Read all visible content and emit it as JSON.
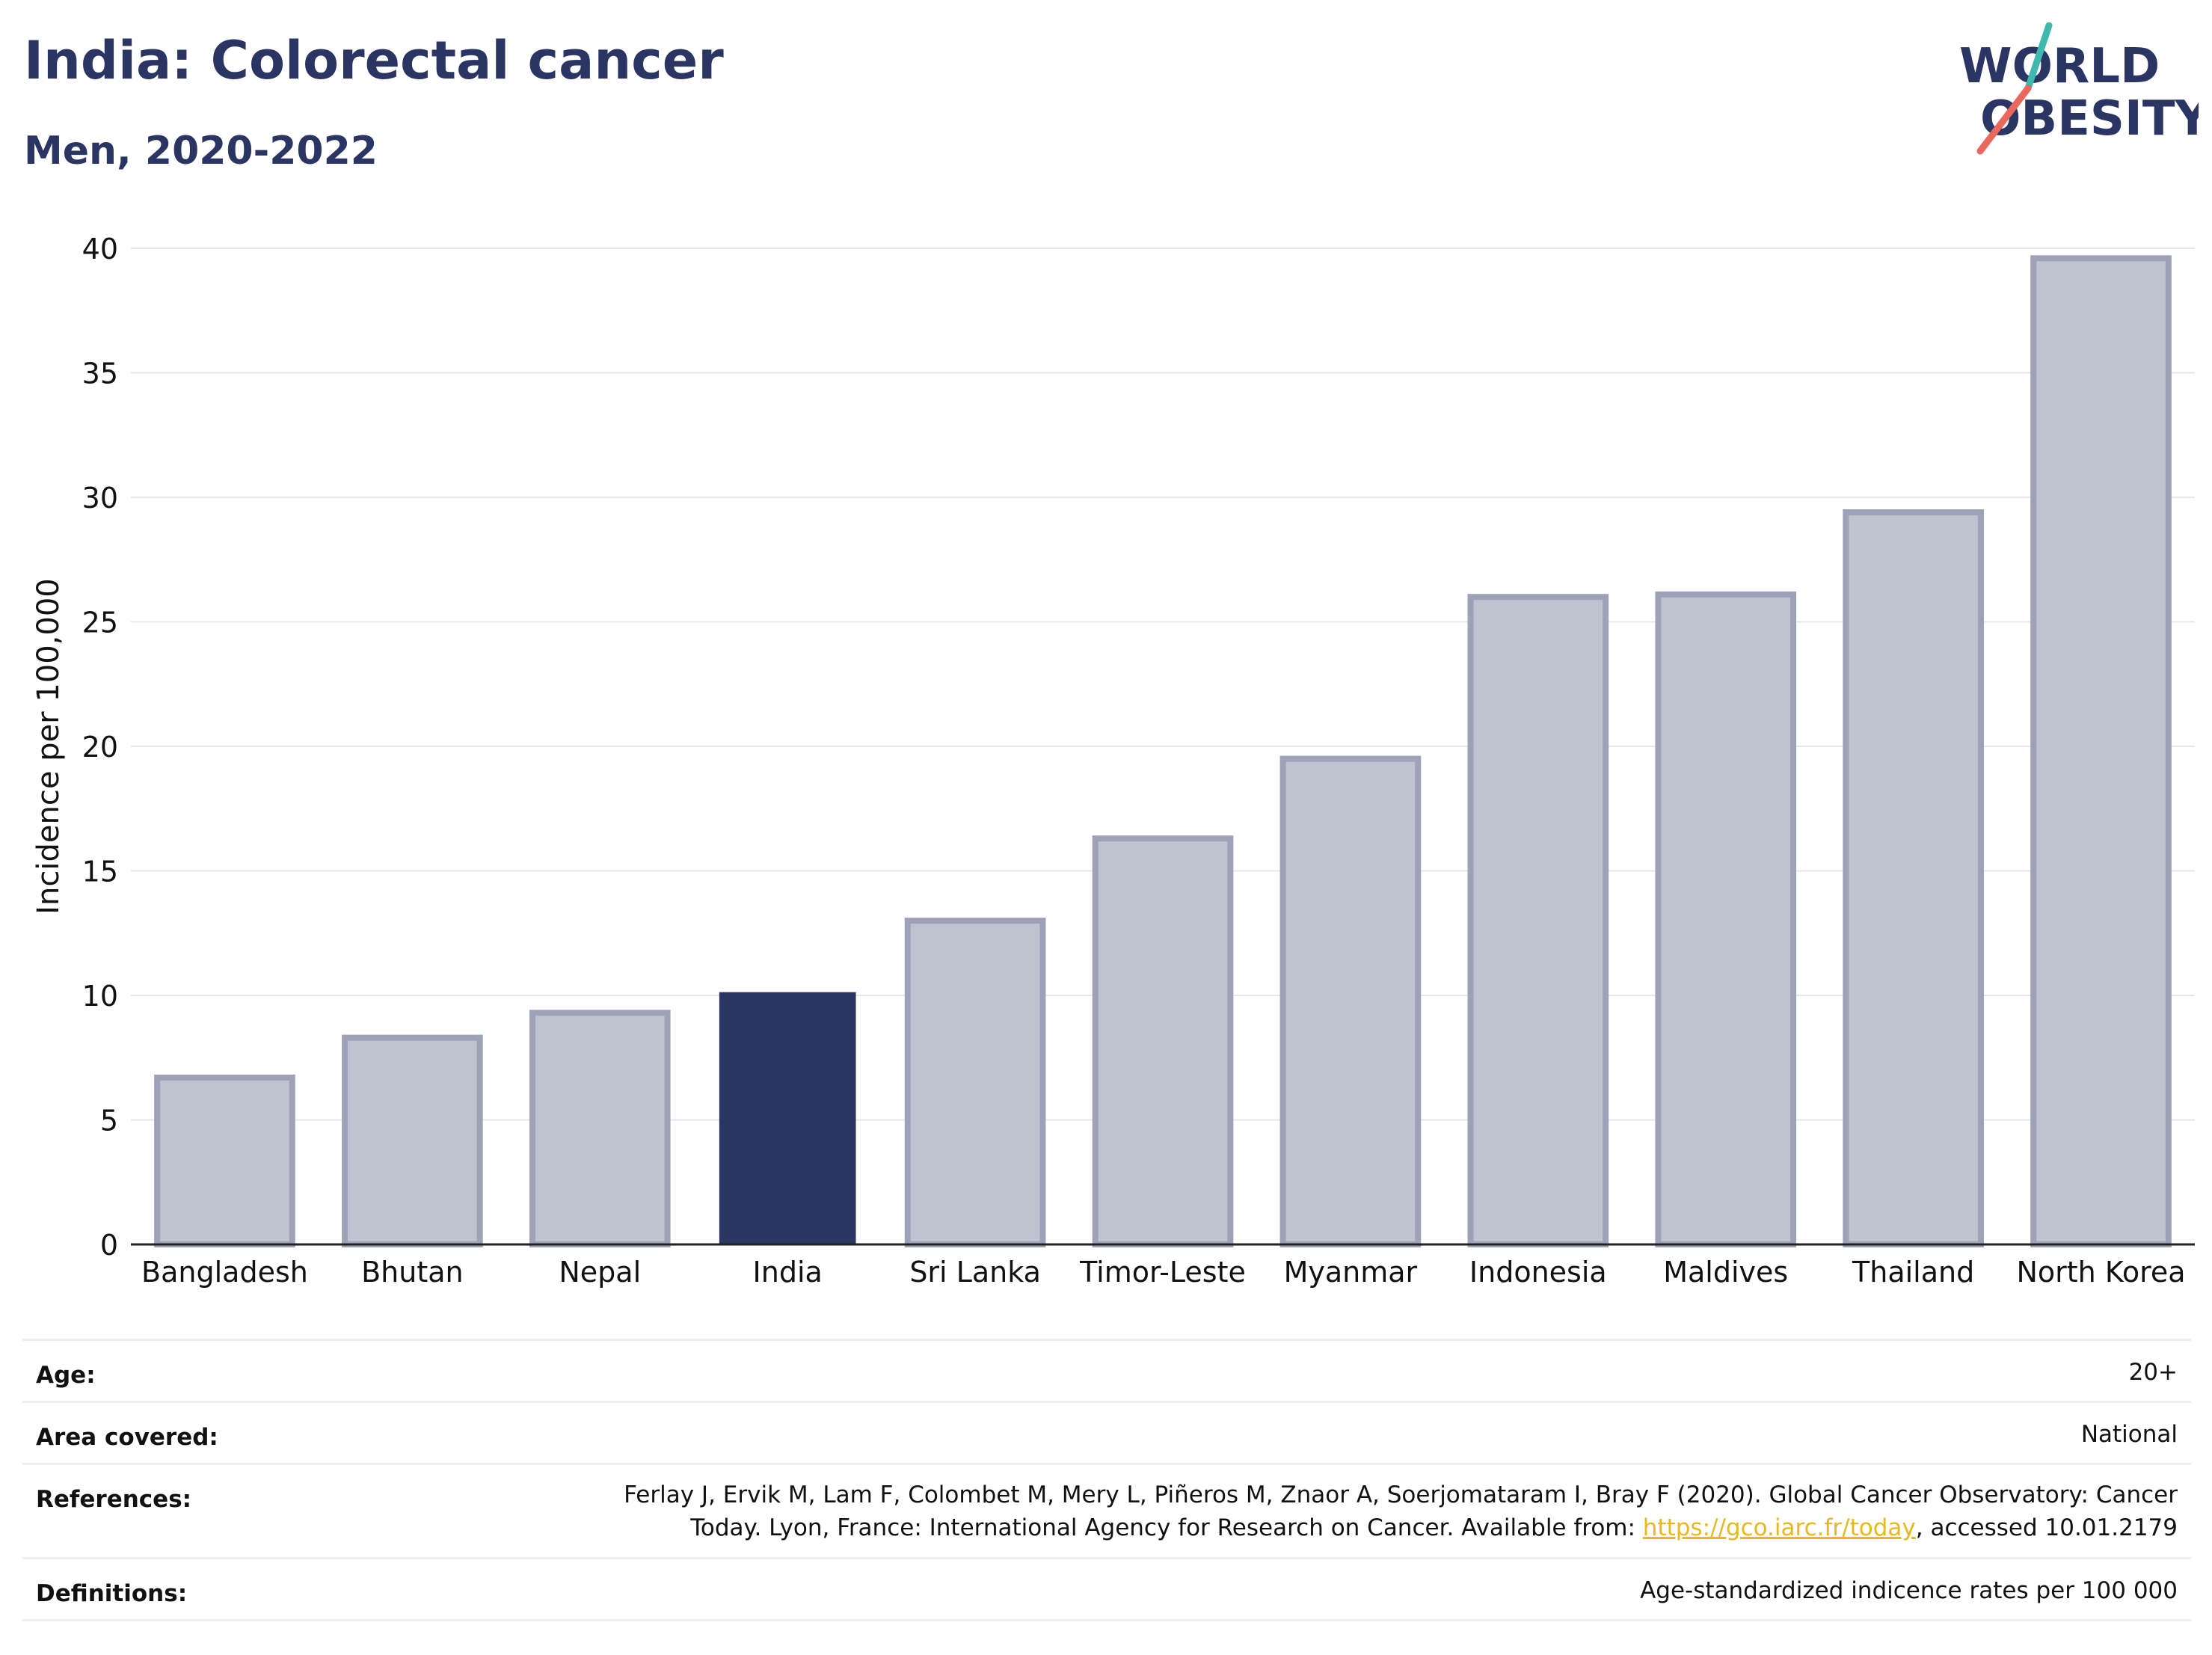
{
  "header": {
    "title": "India: Colorectal cancer",
    "subtitle": "Men, 2020-2022"
  },
  "logo": {
    "line1": "WORLD",
    "line2": "OBESITY",
    "accent_teal": "#3fb8b0",
    "accent_coral": "#e9675c"
  },
  "colors": {
    "highlight": "#2b3563",
    "bar_fill": "#bfc2cf",
    "bar_stroke": "#9ea2b8",
    "grid": "#e6e7ec",
    "text": "#111111"
  },
  "chart_data": {
    "type": "bar",
    "categories": [
      "Bangladesh",
      "Bhutan",
      "Nepal",
      "India",
      "Sri Lanka",
      "Timor-Leste",
      "Myanmar",
      "Indonesia",
      "Maldives",
      "Thailand",
      "North Korea"
    ],
    "values": [
      6.7,
      8.3,
      9.3,
      10.1,
      13.0,
      16.3,
      19.5,
      26.0,
      26.1,
      29.4,
      39.6
    ],
    "highlight": "India",
    "ylabel": "Incidence per 100,000",
    "ylim": [
      0,
      40
    ],
    "yticks": [
      "0",
      "5",
      "10",
      "15",
      "20",
      "25",
      "30",
      "35",
      "40"
    ],
    "grid": true
  },
  "info": {
    "age_label": "Age:",
    "age_value": "20+",
    "area_label": "Area covered:",
    "area_value": "National",
    "references_label": "References:",
    "references_line1": "Ferlay J, Ervik M, Lam F, Colombet M, Mery L, Piñeros M, Znaor A, Soerjomataram I, Bray F (2020). Global Cancer Observatory: Cancer",
    "references_line2_pre": "Today. Lyon, France: International Agency for Research on Cancer. Available from: ",
    "references_link": "https://gco.iarc.fr/today",
    "references_line2_post": ", accessed 10.01.2179",
    "definitions_label": "Definitions:",
    "definitions_value": "Age-standardized indicence rates per 100 000"
  }
}
